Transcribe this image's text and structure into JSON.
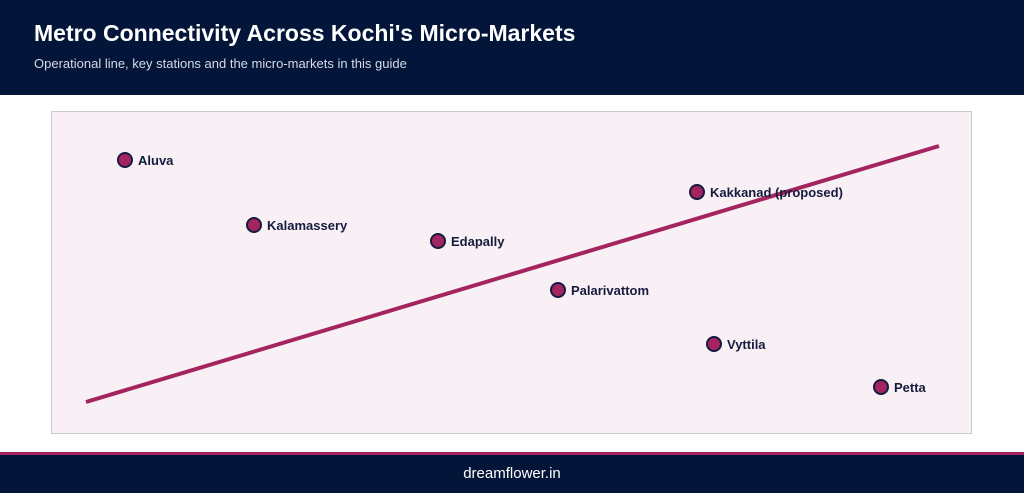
{
  "header": {
    "title": "Metro Connectivity Across Kochi's Micro-Markets",
    "subtitle": "Operational line, key stations and the micro-markets in this guide"
  },
  "map": {
    "line_color": "#a3245e",
    "station_fill": "#a3245e",
    "station_stroke": "#151b3e",
    "stations": [
      {
        "label": "Aluva"
      },
      {
        "label": "Kalamassery"
      },
      {
        "label": "Edapally"
      },
      {
        "label": "Kakkanad (proposed)"
      },
      {
        "label": "Palarivattom"
      },
      {
        "label": "Vyttila"
      },
      {
        "label": "Petta"
      }
    ]
  },
  "footer": {
    "brand": "dreamflower.in"
  }
}
